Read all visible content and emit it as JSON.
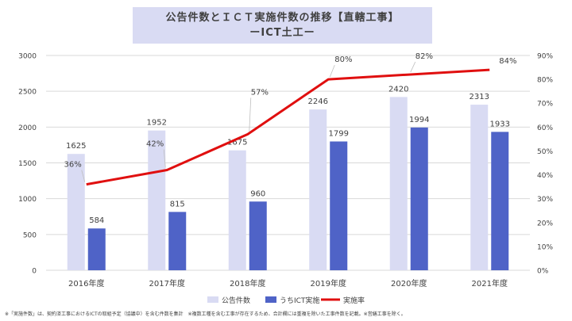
{
  "title": {
    "line1": "公告件数とＩＣＴ実施件数の推移【直轄工事】",
    "line2": "ーICT土工ー"
  },
  "footnote": "※「実施件数」は、契約済工事におけるICTの取組予定（協議中）を含む件数を集計　※複数工種を含む工事が存在するため、合計欄には重複を除いた工事件数を記載。※営繕工事を除く。",
  "colors": {
    "title_bg": "#d9dbf3",
    "bar_published": "#d9dbf3",
    "bar_ict": "#4f63c7",
    "line_rate": "#e00f0f",
    "grid": "#d9d9d9",
    "text": "#404040"
  },
  "chart_data": {
    "type": "bar+line",
    "categories": [
      "2016年度",
      "2017年度",
      "2018年度",
      "2019年度",
      "2020年度",
      "2021年度"
    ],
    "series": [
      {
        "name": "公告件数",
        "type": "bar",
        "axis": "left",
        "values": [
          1625,
          1952,
          1675,
          2246,
          2420,
          2313
        ]
      },
      {
        "name": "うちICT実施",
        "type": "bar",
        "axis": "left",
        "values": [
          584,
          815,
          960,
          1799,
          1994,
          1933
        ]
      },
      {
        "name": "実施率",
        "type": "line",
        "axis": "right",
        "values": [
          36,
          42,
          57,
          80,
          82,
          84
        ]
      }
    ],
    "ylim_left": [
      0,
      3000
    ],
    "yticks_left": [
      "0",
      "500",
      "1000",
      "1500",
      "2000",
      "2500",
      "3000"
    ],
    "ylim_right": [
      0,
      90
    ],
    "yticks_right": [
      "0%",
      "10%",
      "20%",
      "30%",
      "40%",
      "50%",
      "60%",
      "70%",
      "80%",
      "90%"
    ],
    "rate_labels": [
      "36%",
      "42%",
      "57%",
      "80%",
      "82%",
      "84%"
    ],
    "grid": true,
    "legend_position": "bottom"
  }
}
